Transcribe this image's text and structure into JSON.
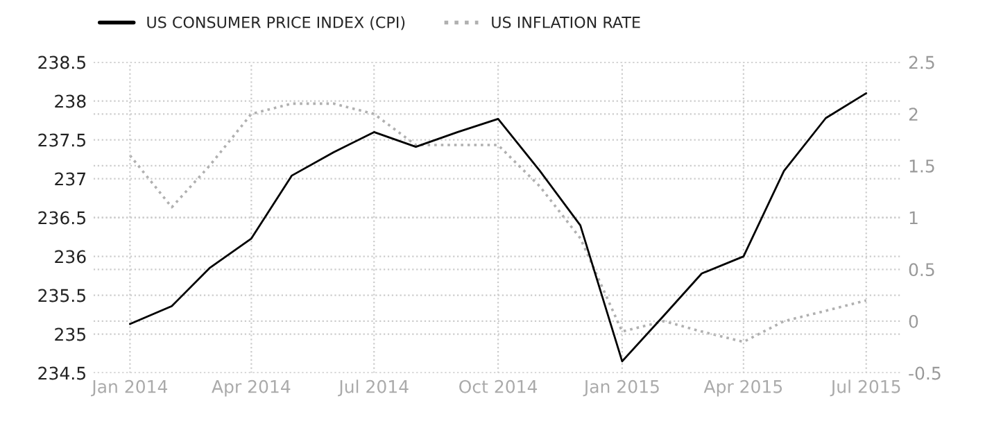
{
  "chart_data": {
    "type": "line",
    "x": [
      "2014-01",
      "2014-02",
      "2014-03",
      "2014-04",
      "2014-05",
      "2014-06",
      "2014-07",
      "2014-08",
      "2014-09",
      "2014-10",
      "2014-11",
      "2014-12",
      "2015-01",
      "2015-02",
      "2015-03",
      "2015-04",
      "2015-05",
      "2015-06",
      "2015-07"
    ],
    "series": [
      {
        "name": "US CONSUMER PRICE INDEX (CPI)",
        "color": "#000000",
        "line_style": "solid",
        "values": [
          235.13,
          235.36,
          235.85,
          236.23,
          237.04,
          237.34,
          237.6,
          237.41,
          237.6,
          237.77,
          237.1,
          236.4,
          234.65,
          235.24,
          235.78,
          236.0,
          237.1,
          237.78,
          238.1
        ]
      },
      {
        "name": "US INFLATION RATE",
        "color": "#b0b0b0",
        "line_style": "dotted",
        "axis": "y2",
        "values": [
          1.6,
          1.1,
          1.5,
          2.0,
          2.1,
          2.1,
          2.0,
          1.7,
          1.7,
          1.7,
          1.3,
          0.8,
          -0.1,
          0.0,
          -0.1,
          -0.2,
          0.0,
          0.1,
          0.2
        ]
      }
    ],
    "xlim": [
      "2013-12-05",
      "2015-07-27"
    ],
    "xticks": [
      {
        "value": "2014-01",
        "label": "Jan 2014"
      },
      {
        "value": "2014-04",
        "label": "Apr 2014"
      },
      {
        "value": "2014-07",
        "label": "Jul 2014"
      },
      {
        "value": "2014-10",
        "label": "Oct 2014"
      },
      {
        "value": "2015-01",
        "label": "Jan 2015"
      },
      {
        "value": "2015-04",
        "label": "Apr 2015"
      },
      {
        "value": "2015-07",
        "label": "Jul 2015"
      }
    ],
    "ylim": [
      234.5,
      238.5
    ],
    "yticks": [
      234.5,
      235,
      235.5,
      236,
      236.5,
      237,
      237.5,
      238,
      238.5
    ],
    "y2lim": [
      -0.5,
      2.5
    ],
    "y2ticks": [
      -0.5,
      0,
      0.5,
      1,
      1.5,
      2,
      2.5
    ],
    "grid": true,
    "legend": "top left"
  }
}
